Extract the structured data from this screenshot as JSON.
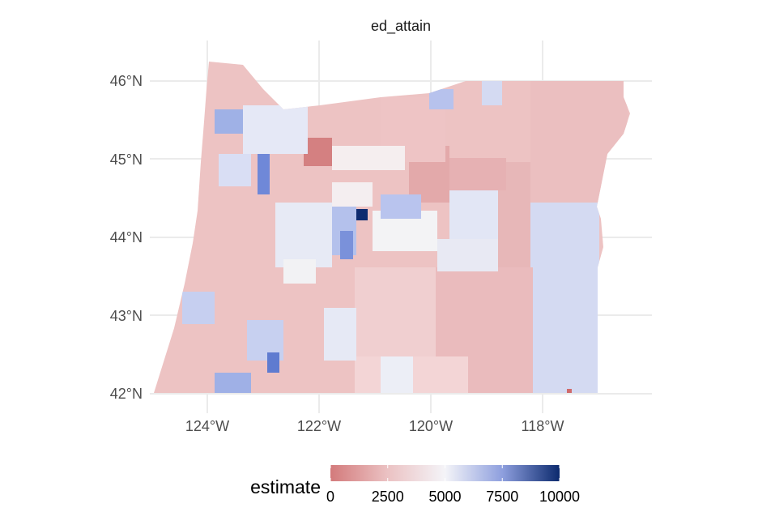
{
  "panel": {
    "title": "ed_attain"
  },
  "map": {
    "region": "Oregon",
    "palette": {
      "low": "#c0393b",
      "mid": "#f7f7f7",
      "high": "#0a2a6b",
      "grid": "#ebebeb"
    },
    "x_ticks": [
      "124°W",
      "122°W",
      "120°W",
      "118°W"
    ],
    "y_ticks": [
      "46°N",
      "45°N",
      "44°N",
      "43°N",
      "42°N"
    ]
  },
  "chart_data": {
    "type": "choropleth",
    "title": "ed_attain",
    "fill_variable": "estimate",
    "lon_range": [
      -124.6,
      -116.4
    ],
    "lat_range": [
      41.9,
      46.4
    ],
    "scale": {
      "min": 0,
      "max": 10000,
      "midpoint": 5000
    },
    "legend": {
      "title": "estimate",
      "breaks": [
        0,
        2500,
        5000,
        7500,
        10000
      ],
      "labels": [
        "0",
        "2500",
        "5000",
        "7500",
        "10000"
      ]
    }
  }
}
